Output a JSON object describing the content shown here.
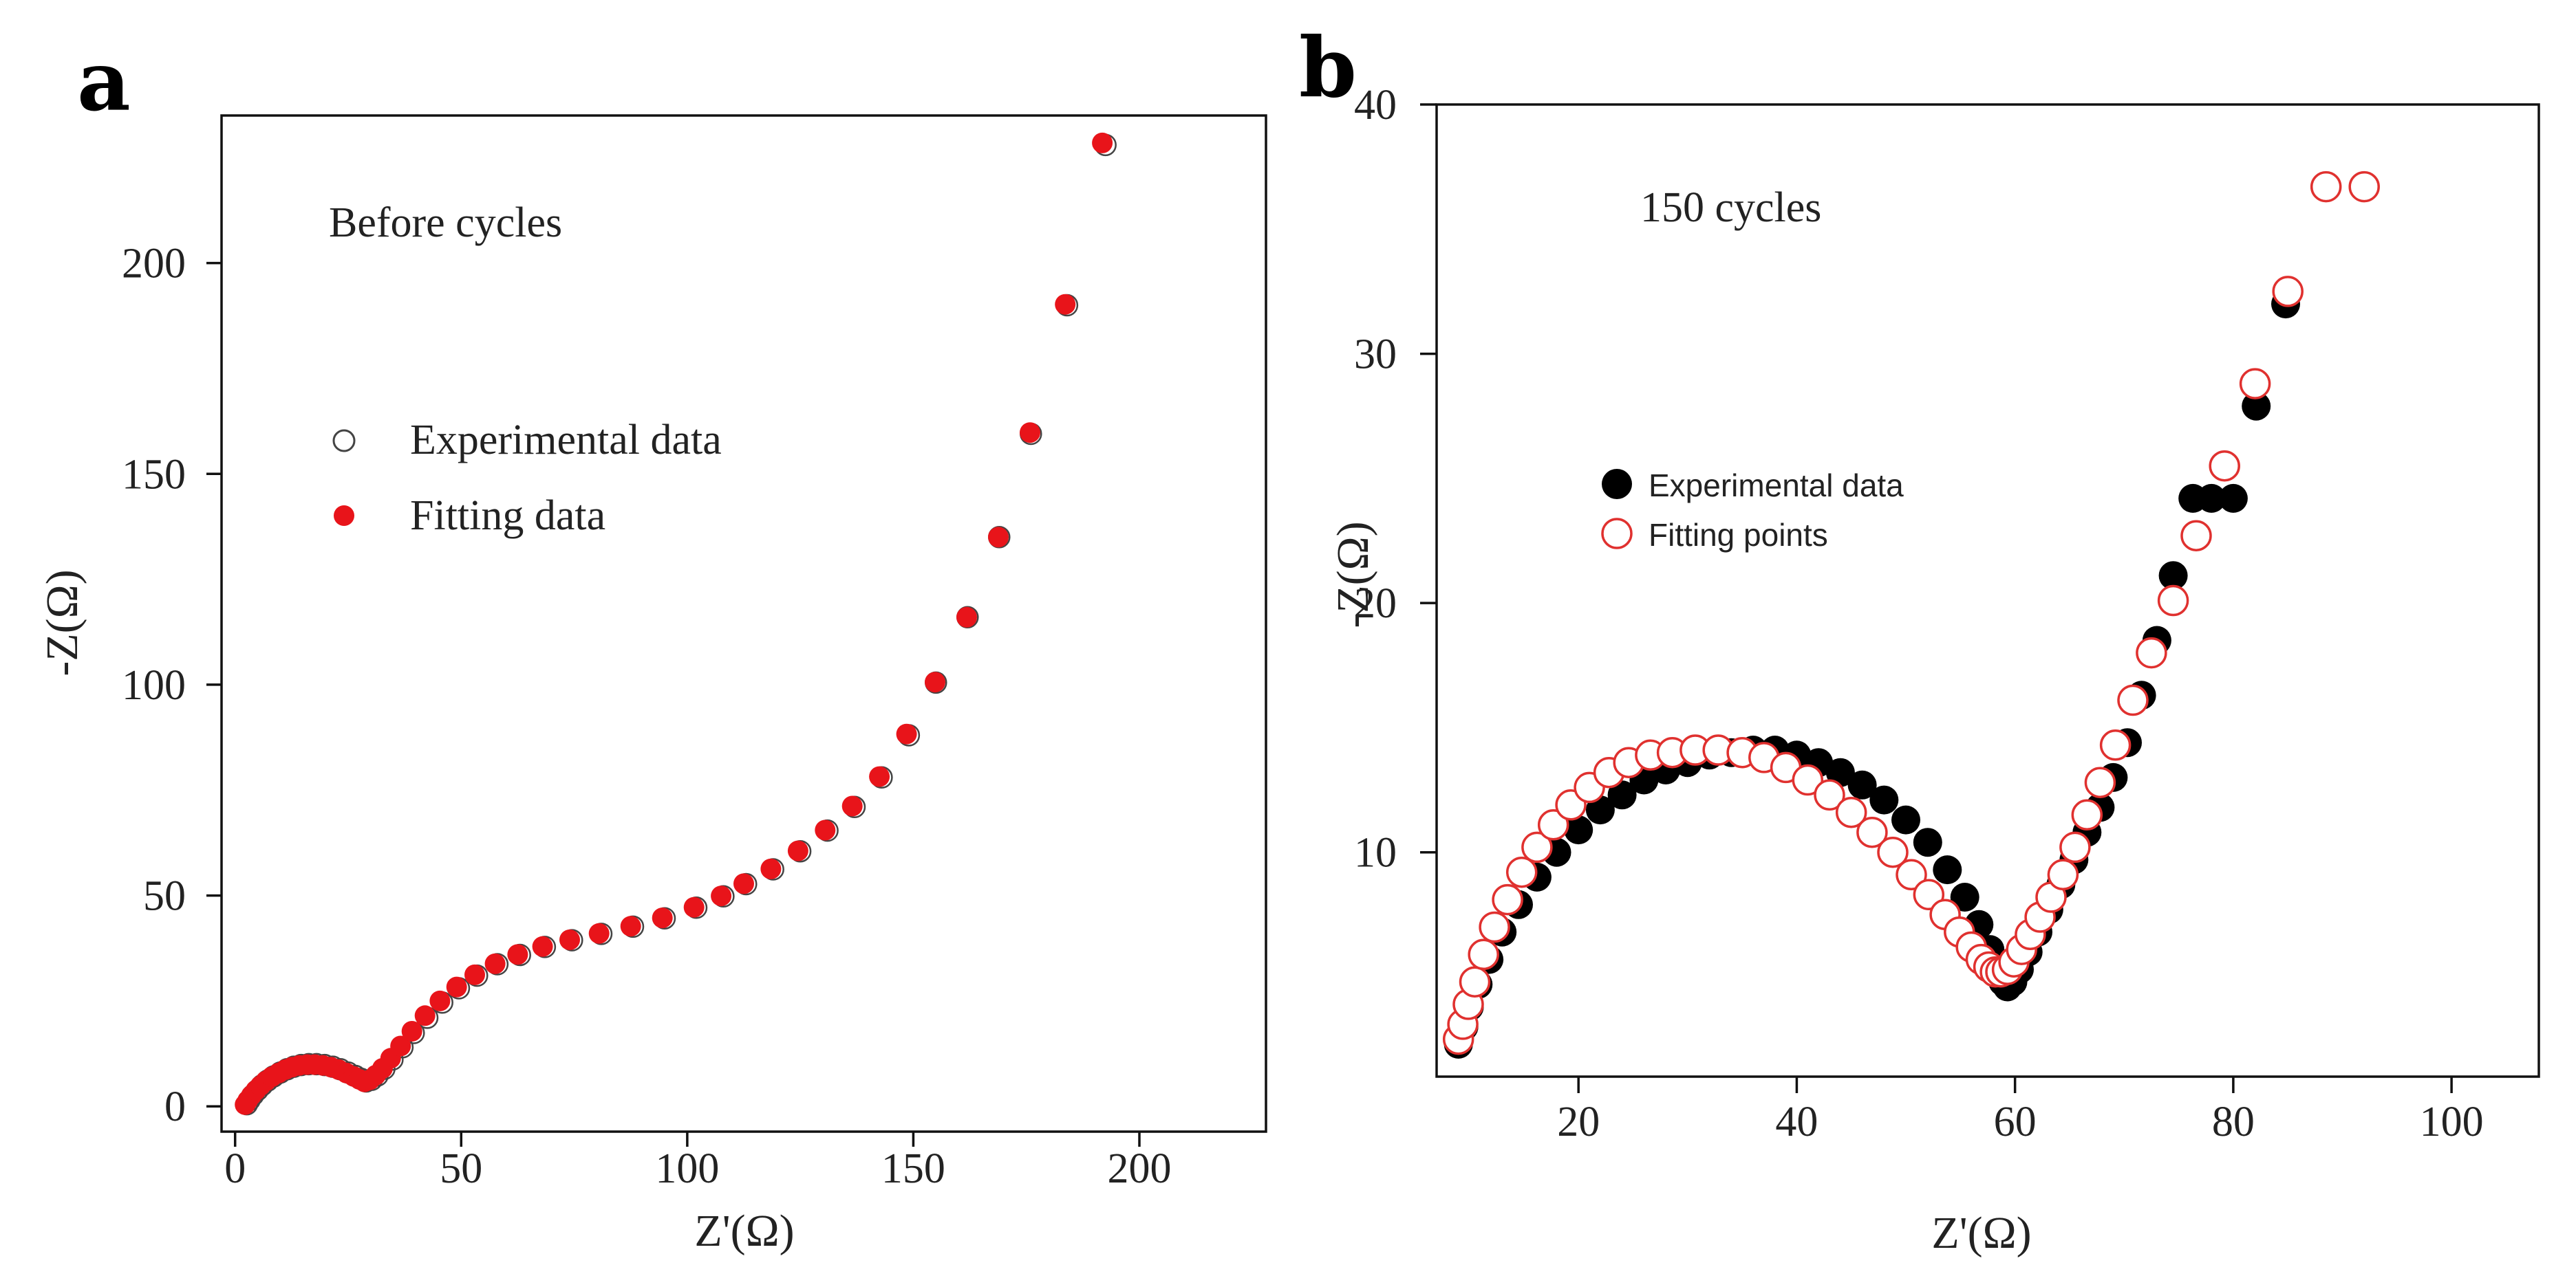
{
  "figure": {
    "panel_a_letter": "a",
    "panel_b_letter": "b"
  },
  "chart_data": [
    {
      "type": "scatter",
      "panel": "a",
      "title": "",
      "annotation": "Before cycles",
      "xlabel": "Z'(Ω)",
      "ylabel": "-Z(Ω)",
      "xlim": [
        -3,
        228
      ],
      "ylim": [
        -6,
        235
      ],
      "xticks": [
        0,
        50,
        100,
        150,
        200
      ],
      "yticks": [
        0,
        50,
        100,
        150,
        200
      ],
      "grid": false,
      "legend": {
        "position": "upper-left"
      },
      "colors": {
        "experimental": "#444444",
        "fitting": "#e8141a"
      },
      "series": [
        {
          "name": "Experimental data",
          "marker": "open-circle",
          "x": [
            2.6,
            3.2,
            4.0,
            5.0,
            6.0,
            7.2,
            8.5,
            10.0,
            11.5,
            13.0,
            14.6,
            16.3,
            18.0,
            19.8,
            21.6,
            23.3,
            25.0,
            26.6,
            27.9,
            29.0,
            30.2,
            31.5,
            33.0,
            34.8,
            37.0,
            39.5,
            42.5,
            45.8,
            49.5,
            53.5,
            58.0,
            63.0,
            68.5,
            74.5,
            81.0,
            88.0,
            95.0,
            102.0,
            108.0,
            113.0,
            119.0,
            125.0,
            131.0,
            137.0,
            143.0,
            149.0,
            155.0,
            162.0,
            169.0,
            176.0,
            184.0,
            192.5
          ],
          "y": [
            0.5,
            1.5,
            2.7,
            3.9,
            5.0,
            6.1,
            7.1,
            8.0,
            8.8,
            9.4,
            9.8,
            10.0,
            10.0,
            9.8,
            9.4,
            8.8,
            8.0,
            7.2,
            6.5,
            5.9,
            6.3,
            7.3,
            8.9,
            11.1,
            14.0,
            17.4,
            21.0,
            24.6,
            28.0,
            31.0,
            33.7,
            35.9,
            37.8,
            39.4,
            40.9,
            42.6,
            44.6,
            47.1,
            49.8,
            52.7,
            56.2,
            60.5,
            65.4,
            71.0,
            78.0,
            88.0,
            100.5,
            116.0,
            135.0,
            159.5,
            190.0,
            228.0
          ]
        },
        {
          "name": "Fitting data",
          "marker": "filled-circle",
          "x": [
            2.2,
            2.8,
            3.6,
            4.6,
            5.6,
            6.8,
            8.1,
            9.6,
            11.1,
            12.6,
            14.2,
            15.9,
            17.6,
            19.4,
            21.2,
            22.9,
            24.6,
            26.2,
            27.5,
            28.6,
            29.8,
            31.1,
            32.6,
            34.4,
            36.6,
            39.1,
            42.0,
            45.3,
            49.0,
            53.0,
            57.5,
            62.5,
            68.0,
            74.0,
            80.5,
            87.5,
            94.5,
            101.5,
            107.5,
            112.5,
            118.5,
            124.5,
            130.5,
            136.5,
            142.5,
            148.5,
            154.8,
            161.8,
            168.8,
            175.8,
            183.6,
            191.8
          ],
          "y": [
            0.4,
            1.4,
            2.6,
            3.8,
            4.9,
            6.0,
            7.0,
            7.9,
            8.7,
            9.3,
            9.7,
            9.9,
            9.9,
            9.7,
            9.3,
            8.7,
            7.9,
            7.1,
            6.4,
            5.8,
            6.3,
            7.4,
            9.0,
            11.4,
            14.3,
            17.8,
            21.5,
            25.0,
            28.3,
            31.2,
            33.8,
            36.0,
            37.9,
            39.5,
            41.0,
            42.7,
            44.7,
            47.2,
            49.9,
            52.8,
            56.3,
            60.6,
            65.5,
            71.2,
            78.2,
            88.3,
            100.6,
            116.0,
            135.0,
            159.8,
            190.2,
            228.5
          ]
        }
      ]
    },
    {
      "type": "scatter",
      "panel": "b",
      "title": "",
      "annotation": "150 cycles",
      "xlabel": "Z'(Ω)",
      "ylabel": "-Z(Ω)",
      "xlim": [
        7,
        108
      ],
      "ylim": [
        1,
        40
      ],
      "xticks": [
        20,
        40,
        60,
        80,
        100
      ],
      "yticks": [
        10,
        20,
        30,
        40
      ],
      "grid": false,
      "legend": {
        "position": "middle-left"
      },
      "colors": {
        "experimental": "#000000",
        "fitting": "#e0312f"
      },
      "series": [
        {
          "name": "Experimental data",
          "marker": "filled-circle",
          "x": [
            9.0,
            9.5,
            10.0,
            10.8,
            11.8,
            13.0,
            14.5,
            16.2,
            18.0,
            20.0,
            22.0,
            24.0,
            26.0,
            28.0,
            30.0,
            32.0,
            34.0,
            36.0,
            38.0,
            40.0,
            42.0,
            44.0,
            46.0,
            48.0,
            50.0,
            52.0,
            53.8,
            55.4,
            56.7,
            57.7,
            58.4,
            58.9,
            59.3,
            59.8,
            60.4,
            61.2,
            62.1,
            63.1,
            64.2,
            65.4,
            66.6,
            67.8,
            69.0,
            70.3,
            71.6,
            73.0,
            74.5,
            76.3,
            78.0,
            80.0,
            82.1,
            84.8,
            88.4
          ],
          "y": [
            2.3,
            3.0,
            3.8,
            4.7,
            5.7,
            6.8,
            7.9,
            9.0,
            10.0,
            10.9,
            11.7,
            12.3,
            12.9,
            13.3,
            13.6,
            13.9,
            14.0,
            14.1,
            14.1,
            13.9,
            13.6,
            13.2,
            12.7,
            12.1,
            11.3,
            10.4,
            9.3,
            8.2,
            7.1,
            6.1,
            5.4,
            4.8,
            4.6,
            4.8,
            5.3,
            6.0,
            6.8,
            7.7,
            8.7,
            9.7,
            10.8,
            11.8,
            13.0,
            14.4,
            16.3,
            18.5,
            21.1,
            24.2,
            24.2,
            24.2,
            27.9,
            32.0,
            36.7
          ]
        },
        {
          "name": "Fitting points",
          "marker": "open-circle",
          "x": [
            9.0,
            9.4,
            9.9,
            10.5,
            11.3,
            12.3,
            13.5,
            14.8,
            16.2,
            17.7,
            19.3,
            21.0,
            22.8,
            24.6,
            26.6,
            28.6,
            30.7,
            32.8,
            35.0,
            37.0,
            39.0,
            41.0,
            43.0,
            45.0,
            46.9,
            48.8,
            50.5,
            52.1,
            53.6,
            54.9,
            56.0,
            56.9,
            57.6,
            58.2,
            58.7,
            59.3,
            59.9,
            60.6,
            61.4,
            62.3,
            63.3,
            64.4,
            65.5,
            66.6,
            67.8,
            69.2,
            70.8,
            72.5,
            74.5,
            76.6,
            79.2,
            82.0,
            85.0,
            88.5,
            92.0
          ],
          "y": [
            2.5,
            3.1,
            3.9,
            4.8,
            5.9,
            7.0,
            8.1,
            9.2,
            10.2,
            11.1,
            11.9,
            12.6,
            13.2,
            13.6,
            13.9,
            14.0,
            14.1,
            14.1,
            14.0,
            13.8,
            13.4,
            12.9,
            12.3,
            11.6,
            10.8,
            10.0,
            9.1,
            8.3,
            7.5,
            6.8,
            6.2,
            5.7,
            5.4,
            5.2,
            5.2,
            5.3,
            5.6,
            6.1,
            6.7,
            7.4,
            8.2,
            9.1,
            10.2,
            11.5,
            12.8,
            14.3,
            16.1,
            18.0,
            20.1,
            22.7,
            25.5,
            28.8,
            32.5,
            36.7,
            36.7
          ]
        }
      ]
    }
  ]
}
